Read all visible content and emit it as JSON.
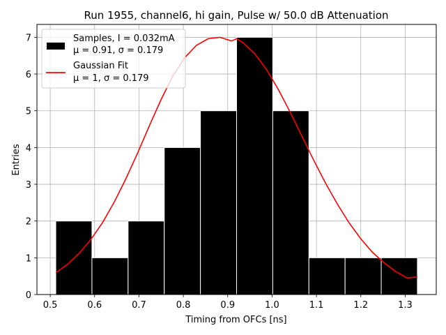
{
  "chart_data": {
    "type": "bar",
    "title": "Run 1955, channel6, hi gain, Pulse w/ 50.0 dB Attenuation",
    "xlabel": "Timing from OFCs [ns]",
    "ylabel": "Entries",
    "xlim": [
      0.47,
      1.37
    ],
    "ylim": [
      0,
      7.35
    ],
    "xticks": [
      0.5,
      0.6,
      0.7,
      0.8,
      0.9,
      1.0,
      1.1,
      1.2,
      1.3
    ],
    "xtick_labels": [
      "0.5",
      "0.6",
      "0.7",
      "0.8",
      "0.9",
      "1.0",
      "1.1",
      "1.2",
      "1.3"
    ],
    "yticks": [
      0,
      1,
      2,
      3,
      4,
      5,
      6,
      7
    ],
    "ytick_labels": [
      "0",
      "1",
      "2",
      "3",
      "4",
      "5",
      "6",
      "7"
    ],
    "grid": true,
    "legend_position": "top-left",
    "histogram": {
      "bin_edges": [
        0.5125,
        0.594,
        0.6755,
        0.757,
        0.8385,
        0.92,
        1.0015,
        1.083,
        1.1645,
        1.246,
        1.3275
      ],
      "counts": [
        2,
        1,
        2,
        4,
        5,
        7,
        5,
        1,
        1,
        1
      ],
      "color": "#000000",
      "edge_color": "#ffffff",
      "legend_label_line1": "Samples, I = 0.032mA",
      "legend_label_line2": "μ = 0.91, σ = 0.179"
    },
    "fit": {
      "x": [
        0.5125,
        0.5389,
        0.5653,
        0.5917,
        0.6181,
        0.6445,
        0.6709,
        0.6973,
        0.7237,
        0.7501,
        0.7765,
        0.8029,
        0.8293,
        0.8557,
        0.8821,
        0.9085,
        0.92,
        0.9349,
        0.9613,
        0.9877,
        1.0141,
        1.0405,
        1.0669,
        1.0933,
        1.1197,
        1.1461,
        1.1725,
        1.1989,
        1.2253,
        1.2517,
        1.2781,
        1.3045,
        1.3275
      ],
      "y": [
        0.59,
        0.82,
        1.12,
        1.5,
        1.96,
        2.52,
        3.16,
        3.86,
        4.6,
        5.31,
        5.95,
        6.44,
        6.78,
        6.96,
        7.0,
        6.9,
        6.96,
        6.85,
        6.55,
        6.12,
        5.58,
        4.97,
        4.32,
        3.67,
        3.05,
        2.48,
        1.97,
        1.53,
        1.16,
        0.87,
        0.63,
        0.45,
        0.48
      ],
      "color": "#ff0000",
      "legend_label_line1": "Gaussian Fit",
      "legend_label_line2": "μ = 1, σ = 0.179"
    }
  }
}
